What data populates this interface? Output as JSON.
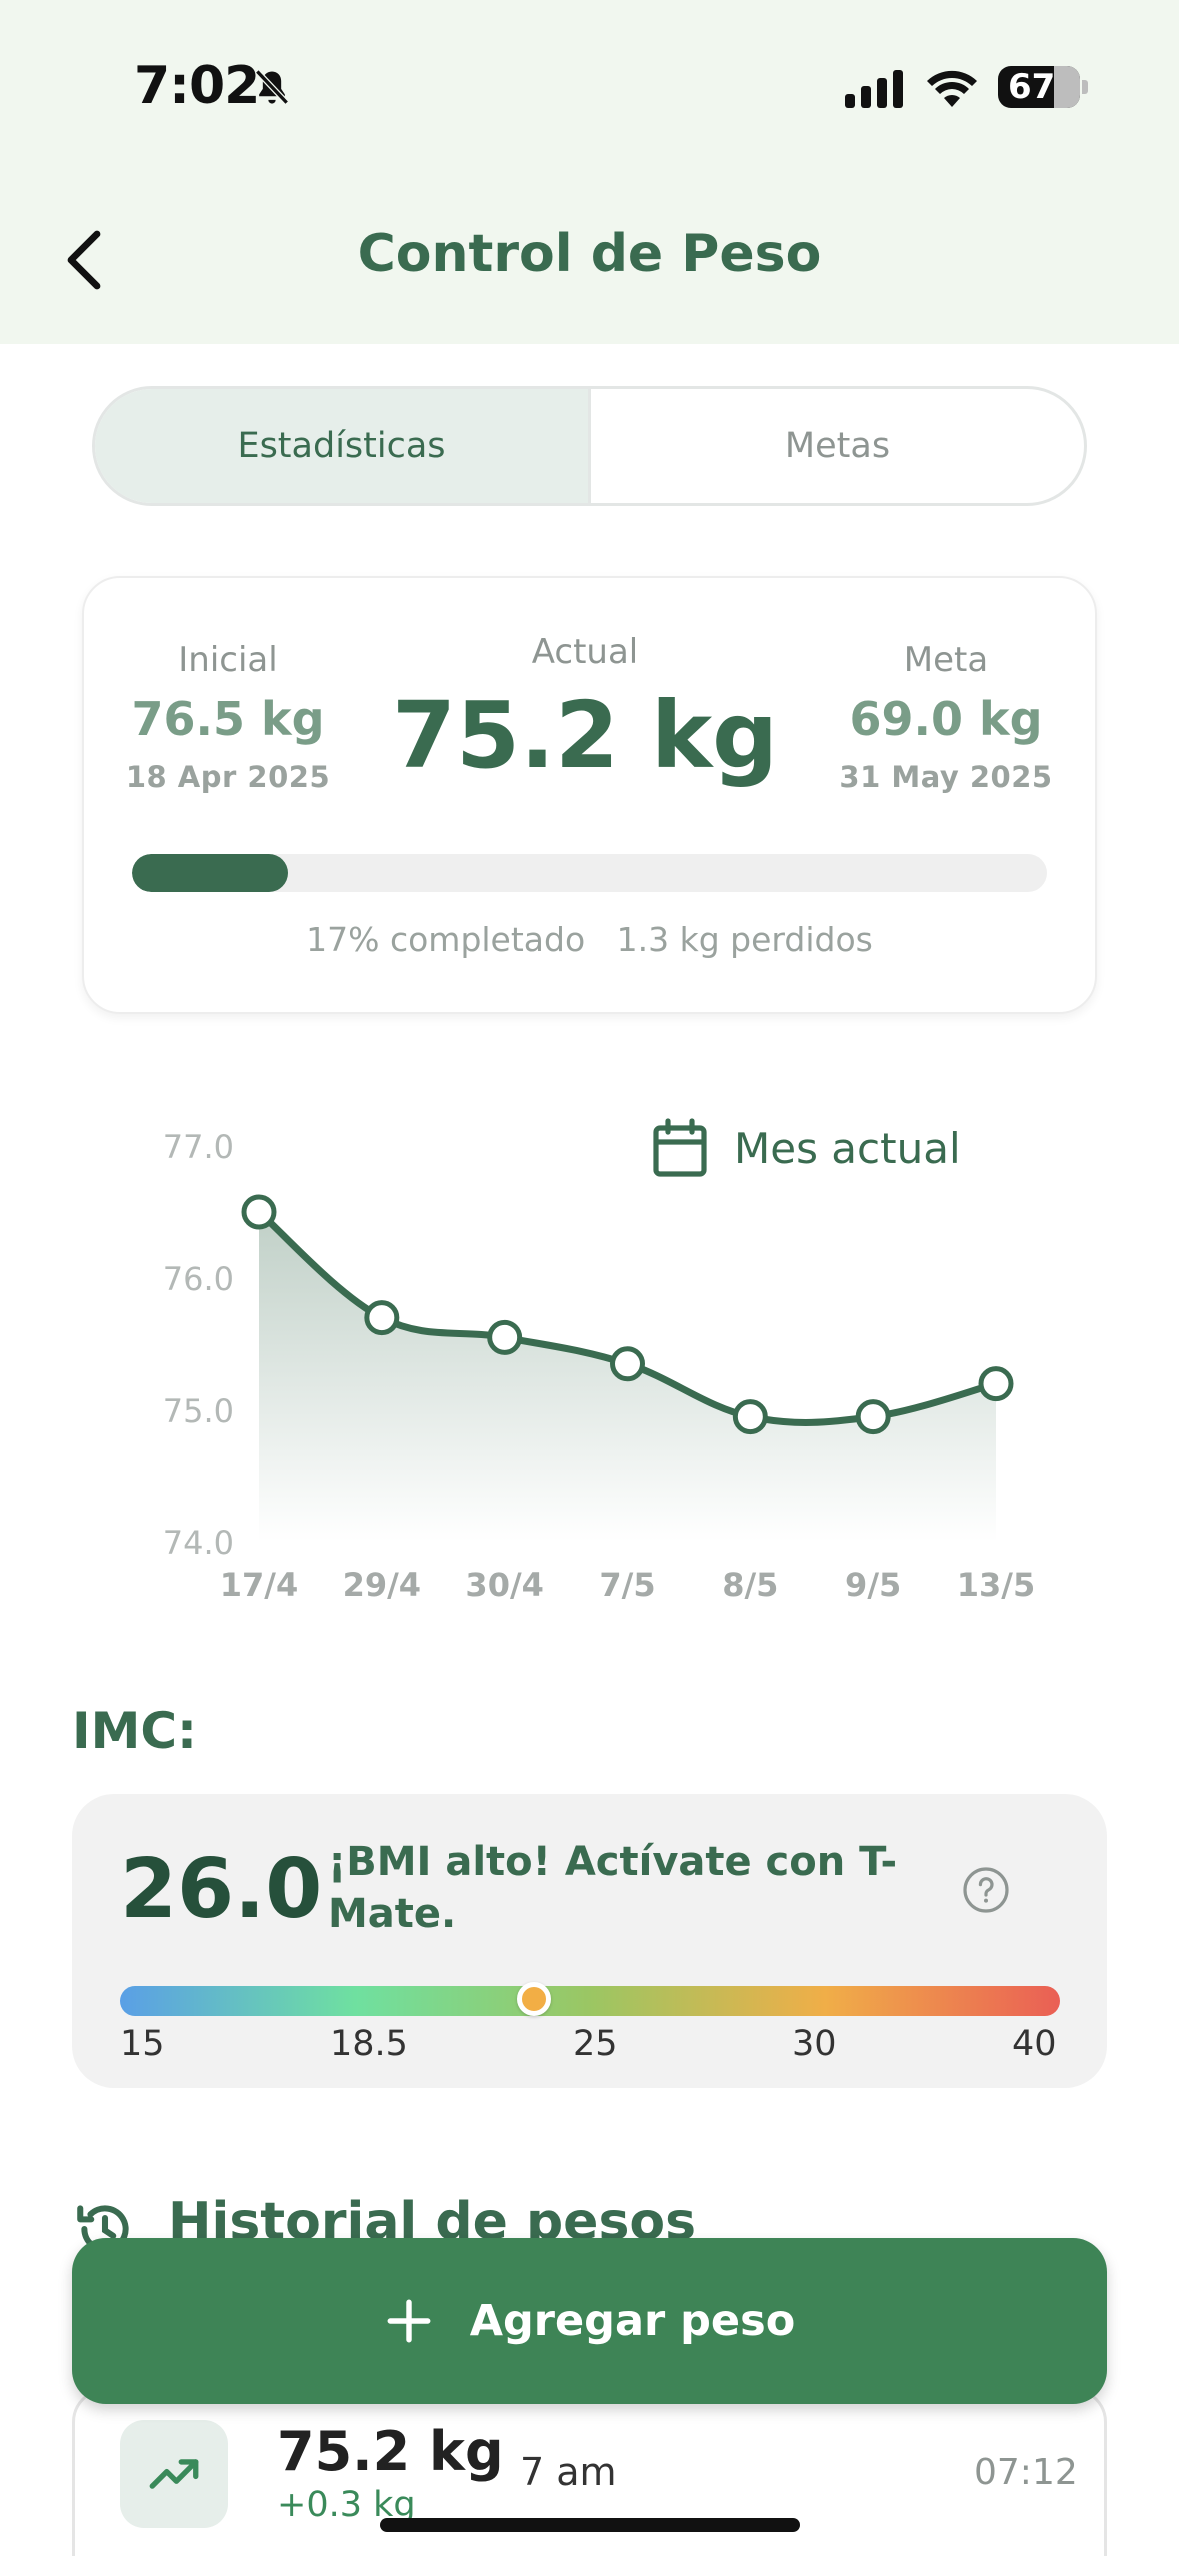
{
  "status_bar": {
    "time": "7:02",
    "battery": "67"
  },
  "header": {
    "title": "Control de Peso"
  },
  "tabs": [
    {
      "label": "Estadísticas",
      "active": true
    },
    {
      "label": "Metas",
      "active": false
    }
  ],
  "summary": {
    "initial": {
      "label": "Inicial",
      "value": "76.5 kg",
      "date": "18 Apr 2025"
    },
    "current": {
      "label": "Actual",
      "value": "75.2 kg"
    },
    "goal": {
      "label": "Meta",
      "value": "69.0 kg",
      "date": "31 May 2025"
    },
    "progress_percent": 17,
    "progress_label": "17% completado",
    "lost_label": "1.3 kg perdidos"
  },
  "chart_range_label": "Mes actual",
  "chart_data": {
    "type": "area",
    "categories": [
      "17/4",
      "29/4",
      "30/4",
      "7/5",
      "8/5",
      "9/5",
      "13/5"
    ],
    "values": [
      76.5,
      75.7,
      75.55,
      75.35,
      74.95,
      74.95,
      75.2
    ],
    "ylim": [
      74.0,
      77.0
    ],
    "y_ticks": [
      "77.0",
      "76.0",
      "75.0",
      "74.0"
    ],
    "color": "#3a6b50"
  },
  "imc": {
    "title": "IMC:",
    "value": "26.0",
    "numeric_value": 26.0,
    "message": "¡BMI alto! Actívate con T-Mate.",
    "scale_ticks": [
      "15",
      "18.5",
      "25",
      "30",
      "40"
    ],
    "scale_range": [
      15,
      40
    ]
  },
  "history": {
    "title": "Historial de pesos",
    "entries": [
      {
        "weight": "75.2 kg",
        "change": "+0.3 kg",
        "label": "7 am",
        "time": "07:12"
      }
    ]
  },
  "add_button": {
    "label": "Agregar peso"
  }
}
